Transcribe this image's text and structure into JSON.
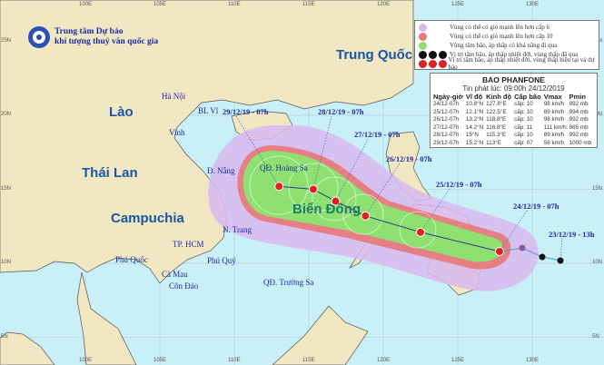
{
  "agency": {
    "line1": "Trung tâm Dự báo",
    "line2": "khí tượng thuỷ văn quốc gia",
    "logo_text": "KTVN"
  },
  "axes": {
    "lon_labels": [
      "100E",
      "105E",
      "110E",
      "115E",
      "120E",
      "125E",
      "130E"
    ],
    "lat_labels": [
      "25N",
      "20N",
      "15N",
      "10N",
      "5N"
    ]
  },
  "countries": {
    "china": "Trung Quốc",
    "laos": "Lào",
    "thailand": "Thái Lan",
    "cambodia": "Campuchia",
    "sea": "Biển Đông"
  },
  "places": [
    "Hà Nội",
    "BL Vĩ",
    "Vinh",
    "Đ. Nẵng",
    "QĐ. Hoàng Sa",
    "N. Trang",
    "TP. HCM",
    "Phú Quốc",
    "Phú Quý",
    "Cà Mau",
    "Côn Đảo",
    "QĐ. Trường Sa"
  ],
  "legend": {
    "items": [
      {
        "label": "Vùng có thể có gió mạnh lên hơn cấp 6",
        "color": "#d9b8f0"
      },
      {
        "label": "Vùng có thể có gió mạnh lên hơn cấp 10",
        "color": "#e87878"
      },
      {
        "label": "Vùng tâm bão, áp thấp có khả năng đi qua",
        "color": "#8ee070"
      },
      {
        "label": "Vị trí tâm bão, áp thấp nhiệt đới, vùng thấp đã qua",
        "color": "#111111"
      },
      {
        "label": "Vị trí tâm bão, áp thấp nhiệt đới, vùng thấp hiện tại và dự báo",
        "color": "#e02020"
      }
    ]
  },
  "bulletin": {
    "title": "BAO PHANFONE",
    "issued": "Tin phát lúc: 09:00h 24/12/2019",
    "headers": [
      "Ngày-giờ",
      "Vĩ độ",
      "Kinh độ",
      "Cấp bão",
      "Vmax",
      "Pmin"
    ],
    "rows": [
      [
        "24/12-07h",
        "10.8°N",
        "127.8°E",
        "cấp: 10",
        "98 km/h",
        "992 mb"
      ],
      [
        "25/12-07h",
        "12.1°N",
        "122.5°E",
        "cấp: 10",
        "89 km/h",
        "994 mb"
      ],
      [
        "26/12-07h",
        "13.2°N",
        "118.8°E",
        "cấp: 10",
        "98 km/h",
        "992 mb"
      ],
      [
        "27/12-07h",
        "14.2°N",
        "116.8°E",
        "cấp: 11",
        "111 km/h",
        "985 mb"
      ],
      [
        "28/12-07h",
        "15°N",
        "115.3°E",
        "cấp: 10",
        "89 km/h",
        "992 mb"
      ],
      [
        "29/12-07h",
        "15.2°N",
        "113°E",
        "cấp: 07",
        "56 km/h",
        "1000 mb"
      ]
    ]
  },
  "track": {
    "forecast": [
      {
        "label": "24/12/19 - 07h",
        "lat": 10.8,
        "lon": 127.8
      },
      {
        "label": "25/12/19 - 07h",
        "lat": 12.1,
        "lon": 122.5
      },
      {
        "label": "26/12/19 - 07h",
        "lat": 13.2,
        "lon": 118.8
      },
      {
        "label": "27/12/19 - 07h",
        "lat": 14.2,
        "lon": 116.8
      },
      {
        "label": "28/12/19 - 07h",
        "lat": 15.0,
        "lon": 115.3
      },
      {
        "label": "29/12/19 - 07h",
        "lat": 15.2,
        "lon": 113.0
      }
    ],
    "past_label": "23/12/19 - 13h",
    "forecast_color": "#e02020",
    "past_color": "#111111",
    "line_color": "#2a3a8a"
  },
  "colors": {
    "sea": "#c9eff7",
    "land": "#f1e7c2"
  }
}
